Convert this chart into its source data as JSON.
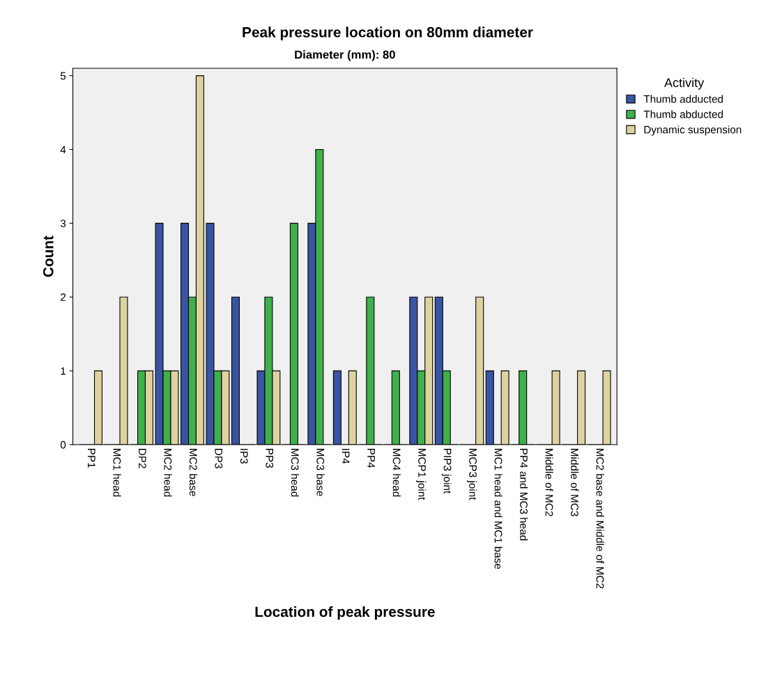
{
  "chart_data": {
    "type": "bar",
    "title": "Peak pressure location on 80mm diameter",
    "subtitle": "Diameter (mm): 80",
    "xlabel": "Location of peak pressure",
    "ylabel": "Count",
    "legend_title": "Activity",
    "legend": "right",
    "grid": false,
    "categories": [
      "PP1",
      "MC1 head",
      "DP2",
      "MC2 head",
      "MC2 base",
      "DP3",
      "IP3",
      "PP3",
      "MC3 head",
      "MC3 base",
      "IP4",
      "PP4",
      "MC4 head",
      "MCP1 joint",
      "PIP3 joint",
      "MCP3 joint",
      "MC1 head and MC1 base",
      "PP4 and MC3 head",
      "Middle of MC2",
      "Middle of MC3",
      "MC2 base and Middle of MC2"
    ],
    "series": [
      {
        "name": "Thumb adducted",
        "color": "#3a54a4",
        "values": [
          0,
          0,
          0,
          3,
          3,
          3,
          2,
          1,
          0,
          3,
          1,
          0,
          0,
          2,
          2,
          0,
          1,
          0,
          0,
          0,
          0
        ]
      },
      {
        "name": "Thumb abducted",
        "color": "#3fb04b",
        "values": [
          0,
          0,
          1,
          1,
          2,
          1,
          0,
          2,
          3,
          4,
          0,
          2,
          1,
          1,
          1,
          0,
          0,
          1,
          0,
          0,
          0
        ]
      },
      {
        "name": "Dynamic suspension",
        "color": "#dcd3a0",
        "values": [
          1,
          2,
          1,
          1,
          5,
          1,
          0,
          1,
          0,
          0,
          1,
          0,
          0,
          2,
          0,
          2,
          1,
          0,
          1,
          1,
          1
        ]
      }
    ],
    "ylim": [
      0,
      5.1
    ],
    "yticks": [
      0,
      1,
      2,
      3,
      4,
      5
    ]
  }
}
